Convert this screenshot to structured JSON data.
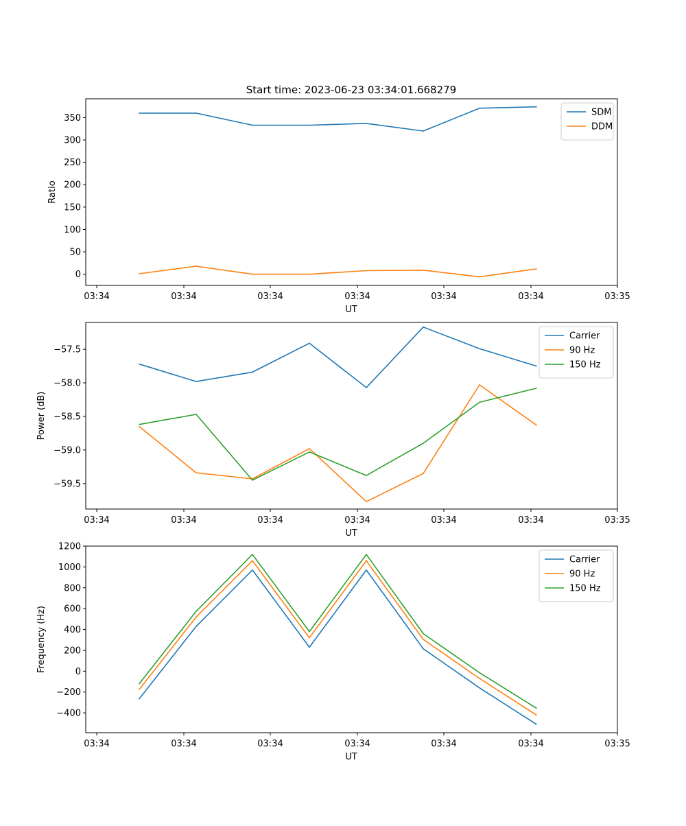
{
  "figure": {
    "title": "Start time: 2023-06-23 03:34:01.668279"
  },
  "chart_data": [
    {
      "type": "line",
      "xlabel": "UT",
      "ylabel": "Ratio",
      "x_tick_labels": [
        "03:34",
        "03:34",
        "03:34",
        "03:34",
        "03:34",
        "03:34",
        "03:34"
      ],
      "x_tick_edge_labels": [
        "03:34",
        "03:35"
      ],
      "ylim": [
        -25,
        392
      ],
      "yticks": [
        0,
        50,
        100,
        150,
        200,
        250,
        300,
        350
      ],
      "ytick_labels": [
        "0",
        "50",
        "100",
        "150",
        "200",
        "250",
        "300",
        "350"
      ],
      "grid": false,
      "legend_position": "top-right",
      "series": [
        {
          "name": "SDM",
          "color": "#1f77b4",
          "values": [
            360,
            360,
            333,
            333,
            337,
            320,
            371,
            374
          ]
        },
        {
          "name": "DDM",
          "color": "#ff7f0e",
          "values": [
            1,
            18,
            0,
            0,
            8,
            9,
            -6,
            12
          ]
        }
      ]
    },
    {
      "type": "line",
      "xlabel": "UT",
      "ylabel": "Power (dB)",
      "x_tick_labels": [
        "03:34",
        "03:34",
        "03:34",
        "03:34",
        "03:34",
        "03:34",
        "03:34"
      ],
      "x_tick_edge_labels": [
        "03:34",
        "03:35"
      ],
      "ylim": [
        -59.88,
        -57.1
      ],
      "yticks": [
        -59.5,
        -59.0,
        -58.5,
        -58.0,
        -57.5
      ],
      "ytick_labels": [
        "−59.5",
        "−59.0",
        "−58.5",
        "−58.0",
        "−57.5"
      ],
      "grid": false,
      "legend_position": "top-right",
      "series": [
        {
          "name": "Carrier",
          "color": "#1f77b4",
          "values": [
            -57.72,
            -57.98,
            -57.84,
            -57.41,
            -58.07,
            -57.17,
            -57.49,
            -57.75
          ]
        },
        {
          "name": "90 Hz",
          "color": "#ff7f0e",
          "values": [
            -58.65,
            -59.34,
            -59.43,
            -58.98,
            -59.77,
            -59.35,
            -58.03,
            -58.63
          ]
        },
        {
          "name": "150 Hz",
          "color": "#2ca02c",
          "values": [
            -58.62,
            -58.47,
            -59.45,
            -59.03,
            -59.38,
            -58.9,
            -58.29,
            -58.08
          ]
        }
      ]
    },
    {
      "type": "line",
      "xlabel": "UT",
      "ylabel": "Frequency (Hz)",
      "x_tick_labels": [
        "03:34",
        "03:34",
        "03:34",
        "03:34",
        "03:34",
        "03:34",
        "03:34"
      ],
      "x_tick_edge_labels": [
        "03:34",
        "03:35"
      ],
      "ylim": [
        -590,
        1200
      ],
      "yticks": [
        -400,
        -200,
        0,
        200,
        400,
        600,
        800,
        1000,
        1200
      ],
      "ytick_labels": [
        "−400",
        "−200",
        "0",
        "200",
        "400",
        "600",
        "800",
        "1000",
        "1200"
      ],
      "grid": false,
      "legend_position": "top-right",
      "series": [
        {
          "name": "Carrier",
          "color": "#1f77b4",
          "values": [
            -265,
            430,
            970,
            230,
            970,
            215,
            -160,
            -510
          ]
        },
        {
          "name": "90 Hz",
          "color": "#ff7f0e",
          "values": [
            -175,
            520,
            1060,
            320,
            1060,
            305,
            -70,
            -420
          ]
        },
        {
          "name": "150 Hz",
          "color": "#2ca02c",
          "values": [
            -120,
            575,
            1120,
            380,
            1120,
            360,
            -15,
            -355
          ]
        }
      ]
    }
  ]
}
